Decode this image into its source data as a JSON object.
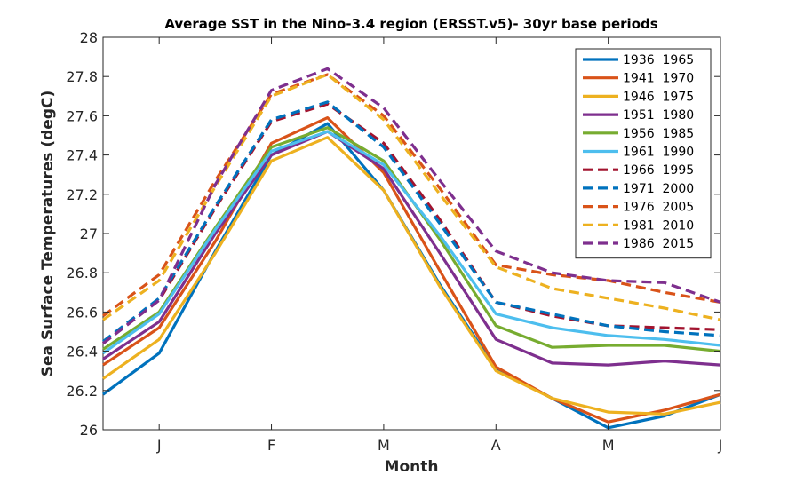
{
  "chart_data": {
    "type": "line",
    "title": "Average SST in the Nino-3.4 region (ERSST.v5)- 30yr base periods",
    "xlabel": "Month",
    "ylabel": "Sea Surface Temperatures (degC)",
    "x": [
      0,
      1,
      2,
      3,
      4,
      5,
      6,
      7,
      8,
      9,
      10,
      11
    ],
    "xticks": [
      1,
      3,
      5,
      7,
      9,
      11
    ],
    "xtick_labels": [
      "J",
      "F",
      "M",
      "A",
      "M",
      "J"
    ],
    "xlim": [
      0,
      11
    ],
    "ylim": [
      26,
      28
    ],
    "yticks": [
      26,
      26.2,
      26.4,
      26.6,
      26.8,
      27,
      27.2,
      27.4,
      27.6,
      27.8,
      28
    ],
    "grid": false,
    "legend_position": "top-right",
    "series": [
      {
        "name": "1936  1965",
        "color": "#0072BD",
        "dash": "solid",
        "values": [
          26.18,
          26.39,
          26.91,
          27.4,
          27.56,
          27.22,
          26.74,
          26.31,
          26.16,
          26.01,
          26.07,
          26.18
        ]
      },
      {
        "name": "1941  1970",
        "color": "#D95319",
        "dash": "solid",
        "values": [
          26.33,
          26.52,
          26.96,
          27.46,
          27.59,
          27.31,
          26.81,
          26.32,
          26.16,
          26.04,
          26.1,
          26.18
        ]
      },
      {
        "name": "1946  1975",
        "color": "#EDB120",
        "dash": "solid",
        "values": [
          26.26,
          26.46,
          26.9,
          27.37,
          27.49,
          27.22,
          26.73,
          26.3,
          26.16,
          26.09,
          26.08,
          26.14
        ]
      },
      {
        "name": "1951  1980",
        "color": "#7E2F8E",
        "dash": "solid",
        "values": [
          26.36,
          26.55,
          27.0,
          27.4,
          27.52,
          27.33,
          26.9,
          26.46,
          26.34,
          26.33,
          26.35,
          26.33
        ]
      },
      {
        "name": "1956  1985",
        "color": "#77AC30",
        "dash": "solid",
        "values": [
          26.41,
          26.6,
          27.03,
          27.44,
          27.54,
          27.37,
          26.97,
          26.53,
          26.42,
          26.43,
          26.43,
          26.4
        ]
      },
      {
        "name": "1961  1990",
        "color": "#4DBEEE",
        "dash": "solid",
        "values": [
          26.39,
          26.59,
          27.02,
          27.42,
          27.52,
          27.35,
          26.99,
          26.59,
          26.52,
          26.48,
          26.46,
          26.43
        ]
      },
      {
        "name": "1966  1995",
        "color": "#A2142F",
        "dash": "dashed",
        "values": [
          26.44,
          26.66,
          27.13,
          27.57,
          27.66,
          27.46,
          27.07,
          26.65,
          26.58,
          26.53,
          26.52,
          26.51
        ]
      },
      {
        "name": "1971  2000",
        "color": "#0072BD",
        "dash": "dashed",
        "values": [
          26.45,
          26.67,
          27.14,
          27.58,
          27.67,
          27.44,
          27.05,
          26.65,
          26.59,
          26.53,
          26.5,
          26.48
        ]
      },
      {
        "name": "1976  2005",
        "color": "#D95319",
        "dash": "dashed",
        "values": [
          26.58,
          26.79,
          27.27,
          27.71,
          27.81,
          27.6,
          27.23,
          26.84,
          26.79,
          26.76,
          26.7,
          26.65
        ]
      },
      {
        "name": "1981  2010",
        "color": "#EDB120",
        "dash": "dashed",
        "values": [
          26.56,
          26.76,
          27.24,
          27.7,
          27.81,
          27.58,
          27.2,
          26.83,
          26.72,
          26.67,
          26.62,
          26.56
        ]
      },
      {
        "name": "1986  2015",
        "color": "#7E2F8E",
        "dash": "dashed",
        "values": [
          26.44,
          26.66,
          27.25,
          27.73,
          27.84,
          27.64,
          27.27,
          26.91,
          26.8,
          26.76,
          26.75,
          26.65
        ]
      }
    ]
  }
}
